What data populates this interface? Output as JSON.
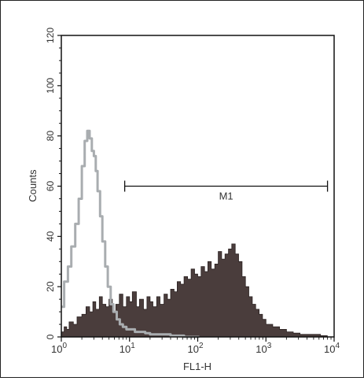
{
  "chart_data": {
    "type": "area",
    "title": "",
    "xlabel": "FL1-H",
    "ylabel": "Counts",
    "xscale": "log",
    "xlim": [
      1,
      10000
    ],
    "ylim": [
      0,
      120
    ],
    "x_ticks": [
      {
        "value": 1,
        "base": "10",
        "exp": "0"
      },
      {
        "value": 10,
        "base": "10",
        "exp": "1"
      },
      {
        "value": 100,
        "base": "10",
        "exp": "2"
      },
      {
        "value": 1000,
        "base": "10",
        "exp": "3"
      },
      {
        "value": 10000,
        "base": "10",
        "exp": "4"
      }
    ],
    "y_ticks": [
      0,
      20,
      40,
      60,
      80,
      100,
      120
    ],
    "grid": false,
    "legend": "none",
    "series": [
      {
        "style": "filled",
        "fill_color": "#4a3d3c",
        "x": [
          1.0,
          1.1,
          1.2,
          1.3,
          1.5,
          1.7,
          2.0,
          2.3,
          2.6,
          2.9,
          3.2,
          3.6,
          4.0,
          4.5,
          5.0,
          5.6,
          6.3,
          7.1,
          8.0,
          9.0,
          10,
          11,
          12.6,
          14,
          16,
          18,
          20,
          22,
          25,
          28,
          32,
          36,
          40,
          45,
          50,
          56,
          63,
          71,
          80,
          90,
          100,
          112,
          126,
          141,
          158,
          178,
          200,
          224,
          251,
          282,
          316,
          355,
          398,
          447,
          501,
          562,
          631,
          708,
          794,
          891,
          1000,
          1259,
          1585,
          2000,
          2512,
          3162,
          4000,
          5000,
          6310,
          7943
        ],
        "y": [
          2,
          4,
          3,
          6,
          5,
          8,
          9,
          12,
          10,
          14,
          11,
          16,
          13,
          12,
          15,
          10,
          13,
          17,
          12,
          16,
          14,
          18,
          12,
          15,
          11,
          16,
          14,
          12,
          16,
          13,
          17,
          15,
          19,
          18,
          22,
          21,
          24,
          23,
          27,
          25,
          24,
          28,
          26,
          30,
          27,
          29,
          34,
          31,
          33,
          35,
          37,
          33,
          30,
          24,
          20,
          16,
          13,
          11,
          9,
          7,
          5,
          4,
          3,
          2,
          1.5,
          1,
          1,
          1,
          0.5,
          0
        ]
      },
      {
        "style": "outline",
        "line_color": "#a9adb0",
        "x": [
          1.0,
          1.1,
          1.25,
          1.4,
          1.6,
          1.8,
          2.0,
          2.2,
          2.4,
          2.6,
          2.8,
          3.0,
          3.2,
          3.4,
          3.7,
          4.0,
          4.4,
          4.8,
          5.3,
          5.8,
          6.5,
          7.2,
          8.0,
          9.0,
          10,
          12,
          14,
          17,
          20,
          25,
          32,
          40,
          50,
          63,
          80,
          100
        ],
        "y": [
          12,
          22,
          28,
          36,
          45,
          55,
          68,
          78,
          82,
          79,
          74,
          72,
          66,
          58,
          48,
          38,
          28,
          20,
          13,
          10,
          7,
          5,
          4,
          3,
          3,
          2,
          2,
          1.5,
          1,
          1,
          1,
          0.5,
          0.5,
          0,
          0,
          0
        ]
      }
    ],
    "annotations": [
      {
        "type": "marker-range",
        "label": "M1",
        "x_start": 8.5,
        "x_end": 8000,
        "y": 60
      }
    ]
  }
}
